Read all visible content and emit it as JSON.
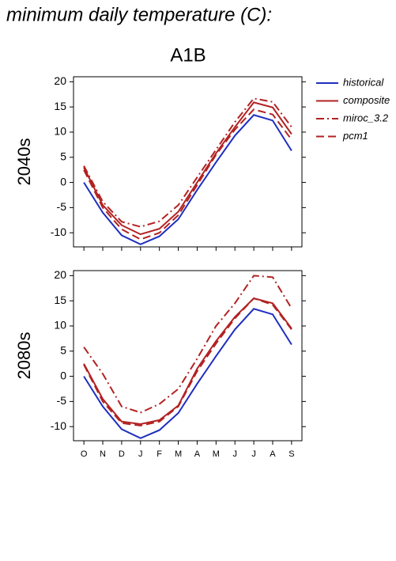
{
  "title": "minimum daily temperature (C):",
  "subtitle": "A1B",
  "legend": "right",
  "chart_data": [
    {
      "type": "line",
      "ylabel": "2040s",
      "categories": [
        "O",
        "N",
        "D",
        "J",
        "F",
        "M",
        "A",
        "M",
        "J",
        "J",
        "A",
        "S"
      ],
      "ylim": [
        -12.8,
        21
      ],
      "yticks": [
        -10,
        -5,
        0,
        5,
        10,
        15,
        20
      ],
      "show_xticklabels": false,
      "series": [
        {
          "name": "historical",
          "color": "#1f2fbf",
          "style": "solid",
          "values": [
            0,
            -6,
            -10.5,
            -12.3,
            -10.7,
            -7.3,
            -1.5,
            4,
            9.3,
            13.4,
            12.3,
            6.3
          ]
        },
        {
          "name": "composite",
          "color": "#b22222",
          "style": "solid",
          "values": [
            3,
            -4.5,
            -8.5,
            -10.3,
            -9.2,
            -5.8,
            0,
            5.8,
            11,
            15.9,
            14.9,
            9.6
          ]
        },
        {
          "name": "miroc_3.2",
          "color": "#b22222",
          "style": "dashdot",
          "values": [
            3.3,
            -3.8,
            -7.8,
            -8.8,
            -7.7,
            -4.5,
            1,
            6.5,
            12,
            16.7,
            16,
            11
          ]
        },
        {
          "name": "pcm1",
          "color": "#b22222",
          "style": "dashed",
          "values": [
            2.5,
            -5,
            -9.3,
            -11.3,
            -10,
            -6.5,
            -0.5,
            5.5,
            10.5,
            14.5,
            13.5,
            8.5
          ]
        }
      ]
    },
    {
      "type": "line",
      "ylabel": "2080s",
      "categories": [
        "O",
        "N",
        "D",
        "J",
        "F",
        "M",
        "A",
        "M",
        "J",
        "J",
        "A",
        "S"
      ],
      "ylim": [
        -12.8,
        21
      ],
      "yticks": [
        -10,
        -5,
        0,
        5,
        10,
        15,
        20
      ],
      "show_xticklabels": true,
      "series": [
        {
          "name": "historical",
          "color": "#1f2fbf",
          "style": "solid",
          "values": [
            0,
            -6,
            -10.5,
            -12.3,
            -10.7,
            -7.3,
            -1.5,
            4,
            9.3,
            13.4,
            12.3,
            6.3
          ]
        },
        {
          "name": "composite",
          "color": "#b22222",
          "style": "solid",
          "values": [
            2.5,
            -4.5,
            -9,
            -9.5,
            -8.7,
            -5.8,
            1.5,
            7,
            11.8,
            15.5,
            14.5,
            9.5
          ]
        },
        {
          "name": "miroc_3.2",
          "color": "#b22222",
          "style": "dashdot",
          "values": [
            5.8,
            0.5,
            -6,
            -7.2,
            -5.5,
            -2.5,
            3.5,
            10,
            14.5,
            20,
            19.7,
            13.5
          ]
        },
        {
          "name": "pcm1",
          "color": "#b22222",
          "style": "dashed",
          "values": [
            2.3,
            -5,
            -9.3,
            -9.8,
            -9,
            -6,
            1,
            6.5,
            11.5,
            15.5,
            14.2,
            9.3
          ]
        }
      ]
    }
  ]
}
